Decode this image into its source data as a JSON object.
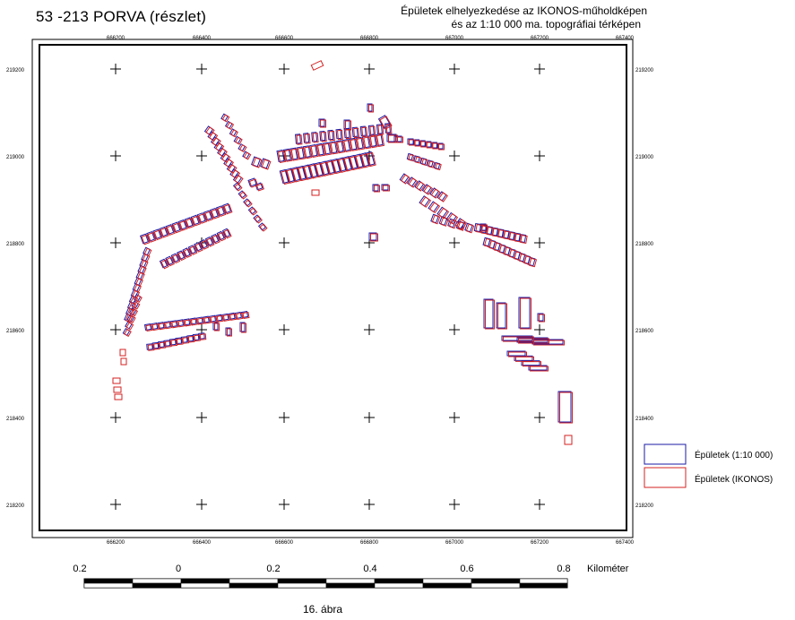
{
  "header": {
    "title": "53 -213 PORVA (részlet)",
    "subtitle_line1": "Épületek elhelyezkedése az IKONOS-műholdképen",
    "subtitle_line2": "és az 1:10 000 ma. topográfiai térképen"
  },
  "map": {
    "x_ticks": [
      "666200",
      "666400",
      "666600",
      "666800",
      "667000",
      "667200",
      "667400"
    ],
    "y_ticks": [
      "219200",
      "219000",
      "218800",
      "218600",
      "218400",
      "218200"
    ],
    "colors": {
      "topo": "#1a1aa6",
      "ikonos": "#d42020",
      "grid": "#000000",
      "frame": "#000000"
    }
  },
  "legend": {
    "topo_label": "Épületek (1:10 000)",
    "ikonos_label": "Épületek (IKONOS)"
  },
  "scalebar": {
    "labels": [
      "0.2",
      "0",
      "0.2",
      "0.4",
      "0.6",
      "0.8"
    ],
    "unit": "Kilométer"
  },
  "caption": "16. ábra"
}
